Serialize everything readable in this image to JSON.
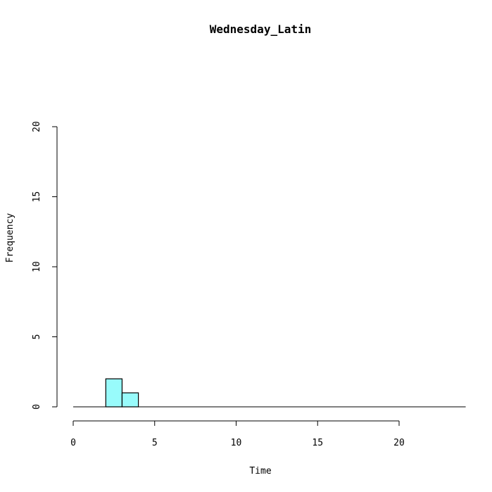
{
  "chart_data": {
    "type": "bar",
    "title": "Wednesday_Latin",
    "xlabel": "Time",
    "ylabel": "Frequency",
    "xlim": [
      0,
      24
    ],
    "ylim": [
      0,
      20
    ],
    "x_ticks": [
      0,
      5,
      10,
      15,
      20
    ],
    "y_ticks": [
      0,
      5,
      10,
      15,
      20
    ],
    "bins": [
      {
        "start": 2,
        "end": 3,
        "count": 2
      },
      {
        "start": 3,
        "end": 4,
        "count": 1
      }
    ],
    "bar_color": "#98FBFB",
    "grid": false
  }
}
